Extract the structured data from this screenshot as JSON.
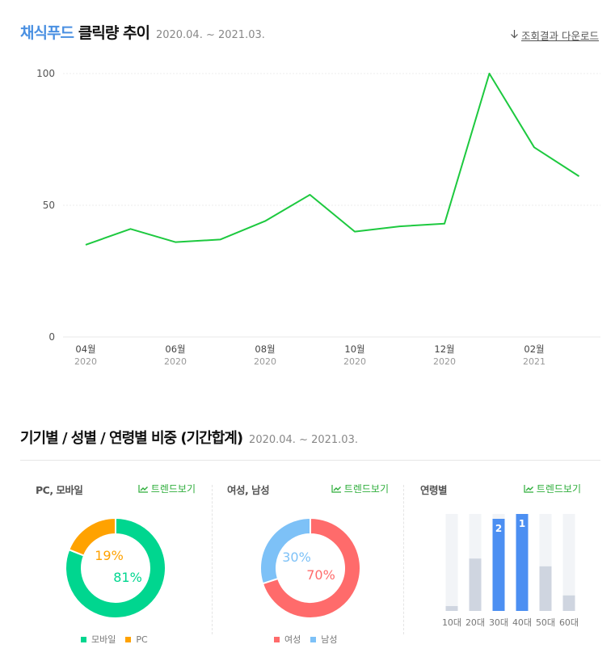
{
  "header": {
    "keyword": "채식푸드",
    "title": "클릭량 추이",
    "period": "2020.04. ~ 2021.03.",
    "download_label": "조회결과 다운로드"
  },
  "section2": {
    "title": "기기별 / 성별 / 연령별 비중 (기간합계)",
    "period": "2020.04. ~ 2021.03."
  },
  "panels": {
    "device": {
      "title": "PC, 모바일",
      "trend_label": "트렌드보기"
    },
    "gender": {
      "title": "여성, 남성",
      "trend_label": "트렌드보기"
    },
    "age": {
      "title": "연령별",
      "trend_label": "트렌드보기"
    }
  },
  "colors": {
    "line": "#1dc93f",
    "mobile": "#00d68f",
    "pc": "#ffa200",
    "female": "#ff6b6b",
    "male": "#7dc1f7",
    "age_bar": "#4c8ff2",
    "age_bg": "#f2f4f7",
    "age_fill": "#cfd5e0",
    "keyword": "#4a90e2",
    "trend": "#2eae3b"
  },
  "chart_data": [
    {
      "type": "line",
      "x": [
        "2020-04",
        "2020-05",
        "2020-06",
        "2020-07",
        "2020-08",
        "2020-09",
        "2020-10",
        "2020-11",
        "2020-12",
        "2021-01",
        "2021-02",
        "2021-03"
      ],
      "values": [
        35,
        41,
        36,
        37,
        44,
        54,
        40,
        42,
        43,
        100,
        72,
        61
      ],
      "ylim": [
        0,
        100
      ],
      "yticks": [
        0,
        50,
        100
      ],
      "xticks": [
        {
          "index": 0,
          "month": "04월",
          "year": "2020"
        },
        {
          "index": 2,
          "month": "06월",
          "year": "2020"
        },
        {
          "index": 4,
          "month": "08월",
          "year": "2020"
        },
        {
          "index": 6,
          "month": "10월",
          "year": "2020"
        },
        {
          "index": 8,
          "month": "12월",
          "year": "2020"
        },
        {
          "index": 10,
          "month": "02월",
          "year": "2021"
        }
      ],
      "grid": true
    },
    {
      "type": "pie",
      "labels": [
        "모바일",
        "PC"
      ],
      "values": [
        81,
        19
      ],
      "value_labels": [
        "81%",
        "19%"
      ]
    },
    {
      "type": "pie",
      "labels": [
        "여성",
        "남성"
      ],
      "values": [
        70,
        30
      ],
      "value_labels": [
        "70%",
        "30%"
      ]
    },
    {
      "type": "bar",
      "categories": [
        "10대",
        "20대",
        "30대",
        "40대",
        "50대",
        "60대"
      ],
      "values": [
        5,
        54,
        95,
        100,
        46,
        16
      ],
      "ylim": [
        0,
        100
      ],
      "highlight_rank": [
        null,
        null,
        "2",
        "1",
        null,
        null
      ]
    }
  ]
}
